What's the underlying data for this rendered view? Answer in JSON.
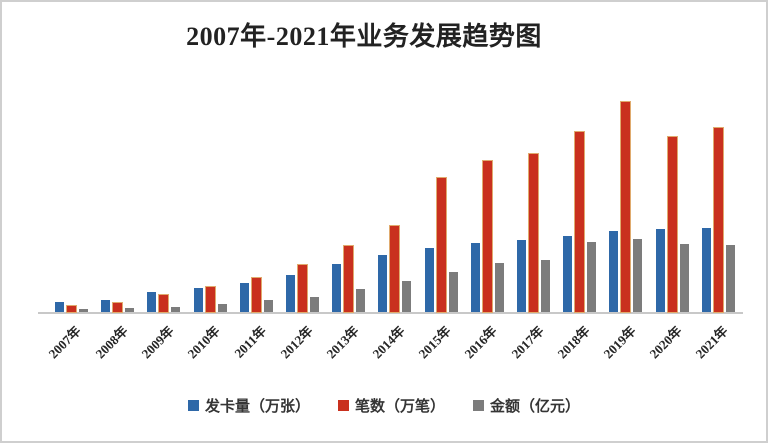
{
  "frame": {
    "title": "2007年-2021年业务发展趋势图"
  },
  "chart_data": {
    "type": "bar",
    "title": "2007年-2021年业务发展趋势图",
    "categories": [
      "2007年",
      "2008年",
      "2009年",
      "2010年",
      "2011年",
      "2012年",
      "2013年",
      "2014年",
      "2015年",
      "2016年",
      "2017年",
      "2018年",
      "2019年",
      "2020年",
      "2021年"
    ],
    "series": [
      {
        "key": "cards",
        "name": "发卡量（万张）",
        "color": "#2E68A8",
        "values": [
          10,
          12,
          20,
          24,
          29,
          37,
          48,
          57,
          64,
          69,
          72,
          76,
          81,
          83,
          84
        ]
      },
      {
        "key": "transactions",
        "name": "笔数（万笔）",
        "color": "#C9301E",
        "values": [
          6,
          9,
          17,
          25,
          34,
          47,
          66,
          86,
          134,
          151,
          158,
          180,
          210,
          175,
          184
        ]
      },
      {
        "key": "amount",
        "name": "金额（亿元）",
        "color": "#7C7C7C",
        "values": [
          3,
          4,
          5,
          8,
          12,
          15,
          23,
          31,
          40,
          49,
          52,
          70,
          73,
          68,
          67
        ]
      }
    ],
    "ylim": [
      0,
      220
    ],
    "y_axis_labels_visible": false,
    "gridlines": false,
    "legend_position": "bottom",
    "x_label_rotation_deg": -45,
    "note": "No y-axis scale is shown in the image; series values are estimated relative units proportional to bar heights."
  }
}
